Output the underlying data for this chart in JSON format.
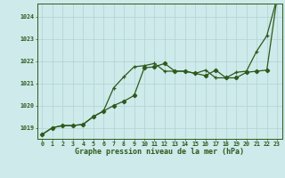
{
  "line1_x": [
    0,
    1,
    2,
    3,
    4,
    5,
    6,
    7,
    8,
    9,
    10,
    11,
    12,
    13,
    14,
    15,
    16,
    17,
    18,
    19,
    20,
    21,
    22,
    23
  ],
  "line1_y": [
    1018.7,
    1019.0,
    1019.1,
    1019.1,
    1019.15,
    1019.5,
    1019.75,
    1020.0,
    1020.2,
    1020.45,
    1021.7,
    1021.75,
    1021.9,
    1021.55,
    1021.55,
    1021.45,
    1021.35,
    1021.6,
    1021.25,
    1021.25,
    1021.5,
    1021.55,
    1021.6,
    1024.85
  ],
  "line2_x": [
    0,
    1,
    2,
    3,
    4,
    5,
    6,
    7,
    8,
    9,
    10,
    11,
    12,
    13,
    14,
    15,
    16,
    17,
    18,
    19,
    20,
    21,
    22,
    23
  ],
  "line2_y": [
    1018.7,
    1019.0,
    1019.1,
    1019.1,
    1019.15,
    1019.5,
    1019.75,
    1020.8,
    1021.3,
    1021.75,
    1021.8,
    1021.9,
    1021.55,
    1021.55,
    1021.55,
    1021.45,
    1021.6,
    1021.25,
    1021.25,
    1021.5,
    1021.55,
    1022.45,
    1023.15,
    1024.85
  ],
  "line_color": "#2d5a1b",
  "bg_color": "#ceeaea",
  "grid_color": "#aed4d4",
  "xlabel": "Graphe pression niveau de la mer (hPa)",
  "ylim_min": 1018.5,
  "ylim_max": 1024.6,
  "xlim_min": -0.5,
  "xlim_max": 23.5,
  "yticks": [
    1019,
    1020,
    1021,
    1022,
    1023,
    1024
  ],
  "xticks": [
    0,
    1,
    2,
    3,
    4,
    5,
    6,
    7,
    8,
    9,
    10,
    11,
    12,
    13,
    14,
    15,
    16,
    17,
    18,
    19,
    20,
    21,
    22,
    23
  ]
}
